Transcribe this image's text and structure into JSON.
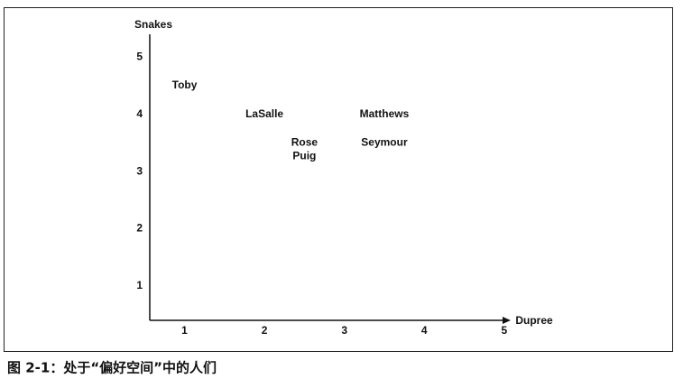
{
  "chart_data": {
    "type": "scatter",
    "x_label": "Dupree",
    "y_label": "Snakes",
    "point_labels": [
      "Toby",
      "LaSalle",
      "Rose",
      "Puig",
      "Matthews",
      "Seymour"
    ],
    "x": [
      1,
      2,
      2.5,
      2.5,
      3.5,
      3.5
    ],
    "values": [
      4.5,
      4,
      3.5,
      3.5,
      4,
      3.5
    ],
    "color": "#111111",
    "xlim": [
      0.565,
      5.07
    ],
    "xticks": [
      1,
      2,
      3,
      4,
      5
    ],
    "ylim": [
      0.4,
      5.4
    ],
    "yticks": [
      1,
      2,
      3,
      4,
      5
    ],
    "caption": "图 2-1：处于“偏好空间”中的人们"
  }
}
